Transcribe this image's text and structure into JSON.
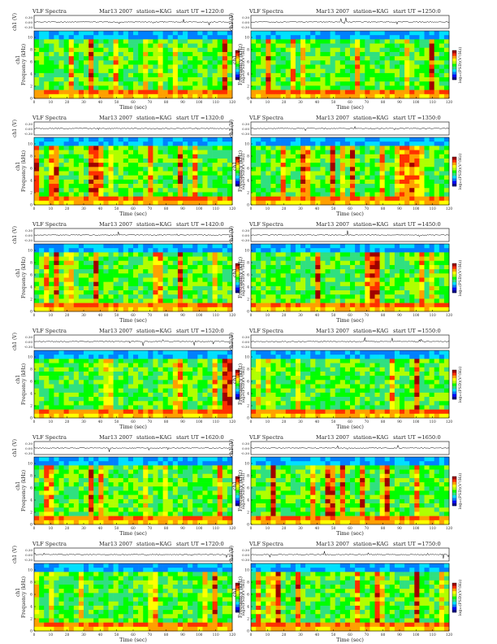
{
  "page": {
    "background": "#ffffff"
  },
  "chart_data": [
    {
      "type": "heatmap",
      "title": "VLF Spectra",
      "date": "Mar13 2007",
      "station": "station=KAG",
      "start": "start  UT =1220:0",
      "waveform_label": "ch1 (V)",
      "ylabel": "Frequency  (kHz)",
      "channel": "ch1",
      "xlabel": "Time  (sec)",
      "colorbar_label": "log₁₀(PSD)(V²/Hz)",
      "xlim": [
        0,
        120
      ],
      "ylim": [
        0,
        10
      ],
      "x_ticks": [
        "0",
        "10",
        "20",
        "30",
        "40",
        "50",
        "60",
        "70",
        "80",
        "90",
        "100",
        "110",
        "120"
      ],
      "y_ticks": [
        "0",
        "2",
        "4",
        "6",
        "8",
        "10"
      ],
      "wave_ticks": [
        "0.30",
        "0.00",
        "-0.30"
      ],
      "grid": false
    },
    {
      "type": "heatmap",
      "title": "VLF Spectra",
      "date": "Mar13 2007",
      "station": "station=KAG",
      "start": "start  UT =1250:0",
      "waveform_label": "ch1 (V)",
      "ylabel": "Frequency  (kHz)",
      "channel": "ch1",
      "xlabel": "Time  (sec)",
      "colorbar_label": "log₁₀(PSD)(V²/Hz)",
      "xlim": [
        0,
        120
      ],
      "ylim": [
        0,
        10
      ],
      "x_ticks": [
        "0",
        "10",
        "20",
        "30",
        "40",
        "50",
        "60",
        "70",
        "80",
        "90",
        "100",
        "110",
        "120"
      ],
      "y_ticks": [
        "0",
        "2",
        "4",
        "6",
        "8",
        "10"
      ],
      "wave_ticks": [
        "0.30",
        "0.00",
        "-0.30"
      ],
      "grid": false
    },
    {
      "type": "heatmap",
      "title": "VLF Spectra",
      "date": "Mar13 2007",
      "station": "station=KAG",
      "start": "start  UT =1320:0",
      "waveform_label": "ch1 (V)",
      "ylabel": "Frequency  (kHz)",
      "channel": "ch1",
      "xlabel": "Time  (sec)",
      "colorbar_label": "log₁₀(PSD)(V²/Hz)",
      "xlim": [
        0,
        120
      ],
      "ylim": [
        0,
        10
      ],
      "x_ticks": [
        "0",
        "10",
        "20",
        "30",
        "40",
        "50",
        "60",
        "70",
        "80",
        "90",
        "100",
        "110",
        "120"
      ],
      "y_ticks": [
        "0",
        "2",
        "4",
        "6",
        "8",
        "10"
      ],
      "wave_ticks": [
        "0.30",
        "0.00",
        "-0.30"
      ],
      "grid": false
    },
    {
      "type": "heatmap",
      "title": "VLF Spectra",
      "date": "Mar13 2007",
      "station": "station=KAG",
      "start": "start  UT =1350:0",
      "waveform_label": "ch1 (V)",
      "ylabel": "Frequency  (kHz)",
      "channel": "ch1",
      "xlabel": "Time  (sec)",
      "colorbar_label": "log₁₀(PSD)(V²/Hz)",
      "xlim": [
        0,
        120
      ],
      "ylim": [
        0,
        10
      ],
      "x_ticks": [
        "0",
        "10",
        "20",
        "30",
        "40",
        "50",
        "60",
        "70",
        "80",
        "90",
        "100",
        "110",
        "120"
      ],
      "y_ticks": [
        "0",
        "2",
        "4",
        "6",
        "8",
        "10"
      ],
      "wave_ticks": [
        "0.30",
        "0.00",
        "-0.30"
      ],
      "grid": false
    },
    {
      "type": "heatmap",
      "title": "VLF Spectra",
      "date": "Mar13 2007",
      "station": "station=KAG",
      "start": "start  UT =1420:0",
      "waveform_label": "ch1 (V)",
      "ylabel": "Frequency  (kHz)",
      "channel": "ch1",
      "xlabel": "Time  (sec)",
      "colorbar_label": "log₁₀(PSD)(V²/Hz)",
      "xlim": [
        0,
        120
      ],
      "ylim": [
        0,
        10
      ],
      "x_ticks": [
        "0",
        "10",
        "20",
        "30",
        "40",
        "50",
        "60",
        "70",
        "80",
        "90",
        "100",
        "110",
        "120"
      ],
      "y_ticks": [
        "0",
        "2",
        "4",
        "6",
        "8",
        "10"
      ],
      "wave_ticks": [
        "0.30",
        "0.00",
        "-0.30"
      ],
      "grid": false
    },
    {
      "type": "heatmap",
      "title": "VLF Spectra",
      "date": "Mar13 2007",
      "station": "station=KAG",
      "start": "start  UT =1450:0",
      "waveform_label": "ch1 (V)",
      "ylabel": "Frequency  (kHz)",
      "channel": "ch1",
      "xlabel": "Time  (sec)",
      "colorbar_label": "log₁₀(PSD)(V²/Hz)",
      "xlim": [
        0,
        120
      ],
      "ylim": [
        0,
        10
      ],
      "x_ticks": [
        "0",
        "10",
        "20",
        "30",
        "40",
        "50",
        "60",
        "70",
        "80",
        "90",
        "100",
        "110",
        "120"
      ],
      "y_ticks": [
        "0",
        "2",
        "4",
        "6",
        "8",
        "10"
      ],
      "wave_ticks": [
        "0.30",
        "0.00",
        "-0.30"
      ],
      "grid": false
    },
    {
      "type": "heatmap",
      "title": "VLF Spectra",
      "date": "Mar13 2007",
      "station": "station=KAG",
      "start": "start  UT =1520:0",
      "waveform_label": "ch1 (V)",
      "ylabel": "Frequency  (kHz)",
      "channel": "ch1",
      "xlabel": "Time  (sec)",
      "colorbar_label": "log₁₀(PSD)(V²/Hz)",
      "xlim": [
        0,
        120
      ],
      "ylim": [
        0,
        10
      ],
      "x_ticks": [
        "0",
        "10",
        "20",
        "30",
        "40",
        "50",
        "60",
        "70",
        "80",
        "90",
        "100",
        "110",
        "120"
      ],
      "y_ticks": [
        "0",
        "2",
        "4",
        "6",
        "8",
        "10"
      ],
      "wave_ticks": [
        "0.30",
        "0.00",
        "-0.30"
      ],
      "grid": false
    },
    {
      "type": "heatmap",
      "title": "VLF Spectra",
      "date": "Mar13 2007",
      "station": "station=KAG",
      "start": "start  UT =1550:0",
      "waveform_label": "ch1 (V)",
      "ylabel": "Frequency  (kHz)",
      "channel": "ch1",
      "xlabel": "Time  (sec)",
      "colorbar_label": "log₁₀(PSD)(V²/Hz)",
      "xlim": [
        0,
        120
      ],
      "ylim": [
        0,
        10
      ],
      "x_ticks": [
        "0",
        "10",
        "20",
        "30",
        "40",
        "50",
        "60",
        "70",
        "80",
        "90",
        "100",
        "110",
        "120"
      ],
      "y_ticks": [
        "0",
        "2",
        "4",
        "6",
        "8",
        "10"
      ],
      "wave_ticks": [
        "0.30",
        "0.00",
        "-0.30"
      ],
      "grid": false
    },
    {
      "type": "heatmap",
      "title": "VLF Spectra",
      "date": "Mar13 2007",
      "station": "station=KAG",
      "start": "start  UT =1620:0",
      "waveform_label": "ch1 (V)",
      "ylabel": "Frequency  (kHz)",
      "channel": "ch1",
      "xlabel": "Time  (sec)",
      "colorbar_label": "log₁₀(PSD)(V²/Hz)",
      "xlim": [
        0,
        120
      ],
      "ylim": [
        0,
        10
      ],
      "x_ticks": [
        "0",
        "10",
        "20",
        "30",
        "40",
        "50",
        "60",
        "70",
        "80",
        "90",
        "100",
        "110",
        "120"
      ],
      "y_ticks": [
        "0",
        "2",
        "4",
        "6",
        "8",
        "10"
      ],
      "wave_ticks": [
        "0.30",
        "0.00",
        "-0.30"
      ],
      "grid": false
    },
    {
      "type": "heatmap",
      "title": "VLF Spectra",
      "date": "Mar13 2007",
      "station": "station=KAG",
      "start": "start  UT =1650:0",
      "waveform_label": "ch1 (V)",
      "ylabel": "Frequency  (kHz)",
      "channel": "ch1",
      "xlabel": "Time  (sec)",
      "colorbar_label": "log₁₀(PSD)(V²/Hz)",
      "xlim": [
        0,
        120
      ],
      "ylim": [
        0,
        10
      ],
      "x_ticks": [
        "0",
        "10",
        "20",
        "30",
        "40",
        "50",
        "60",
        "70",
        "80",
        "90",
        "100",
        "110",
        "120"
      ],
      "y_ticks": [
        "0",
        "2",
        "4",
        "6",
        "8",
        "10"
      ],
      "wave_ticks": [
        "0.30",
        "0.00",
        "-0.30"
      ],
      "grid": false
    },
    {
      "type": "heatmap",
      "title": "VLF Spectra",
      "date": "Mar13 2007",
      "station": "station=KAG",
      "start": "start  UT =1720:0",
      "waveform_label": "ch1 (V)",
      "ylabel": "Frequency  (kHz)",
      "channel": "ch1",
      "xlabel": "Time  (sec)",
      "colorbar_label": "log₁₀(PSD)(V²/Hz)",
      "xlim": [
        0,
        120
      ],
      "ylim": [
        0,
        10
      ],
      "x_ticks": [
        "0",
        "10",
        "20",
        "30",
        "40",
        "50",
        "60",
        "70",
        "80",
        "90",
        "100",
        "110",
        "120"
      ],
      "y_ticks": [
        "0",
        "2",
        "4",
        "6",
        "8",
        "10"
      ],
      "wave_ticks": [
        "0.30",
        "0.00",
        "-0.30"
      ],
      "grid": false
    },
    {
      "type": "heatmap",
      "title": "VLF Spectra",
      "date": "Mar13 2007",
      "station": "station=KAG",
      "start": "start  UT =1750:0",
      "waveform_label": "ch1 (V)",
      "ylabel": "Frequency  (kHz)",
      "channel": "ch1",
      "xlabel": "Time  (sec)",
      "colorbar_label": "log₁₀(PSD)(V²/Hz)",
      "xlim": [
        0,
        120
      ],
      "ylim": [
        0,
        10
      ],
      "x_ticks": [
        "0",
        "10",
        "20",
        "30",
        "40",
        "50",
        "60",
        "70",
        "80",
        "90",
        "100",
        "110",
        "120"
      ],
      "y_ticks": [
        "0",
        "2",
        "4",
        "6",
        "8",
        "10"
      ],
      "wave_ticks": [
        "0.30",
        "0.00",
        "-0.30"
      ],
      "grid": false
    }
  ],
  "colors": {
    "colormap": [
      "#00008b",
      "#0000ff",
      "#0080ff",
      "#00e0ff",
      "#30e080",
      "#00ff00",
      "#b0ff00",
      "#ffff00",
      "#ffa000",
      "#ff3000",
      "#a00000"
    ],
    "frame": "#000000",
    "waveform": "#000000"
  }
}
